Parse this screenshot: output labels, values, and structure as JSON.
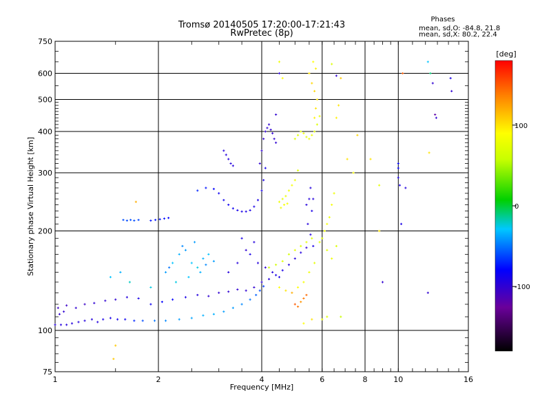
{
  "chart_data": {
    "type": "scatter",
    "title": "Tromsø 20140505 17:20:00-17:21:43",
    "subtitle": "RwPretec (8p)",
    "xlabel": "Frequency [MHz]",
    "ylabel": "Stationary phase Virtual Height [km]",
    "x_scale": "log",
    "y_scale": "log",
    "xlim": [
      1,
      16
    ],
    "ylim": [
      75,
      750
    ],
    "grid": true,
    "x_ticks_major": [
      {
        "value": 1,
        "label": "1"
      },
      {
        "value": 2,
        "label": "2"
      },
      {
        "value": 4,
        "label": "4"
      },
      {
        "value": 6,
        "label": "6"
      },
      {
        "value": 8,
        "label": "8"
      },
      {
        "value": 10,
        "label": "10"
      },
      {
        "value": 16,
        "label": "16"
      }
    ],
    "y_ticks_major": [
      {
        "value": 75,
        "label": "75"
      },
      {
        "value": 100,
        "label": "100"
      },
      {
        "value": 200,
        "label": "200"
      },
      {
        "value": 300,
        "label": "300"
      },
      {
        "value": 400,
        "label": "400"
      },
      {
        "value": 500,
        "label": "500"
      },
      {
        "value": 600,
        "label": "600"
      },
      {
        "value": 750,
        "label": "750"
      }
    ],
    "phase_stats": {
      "heading": "Phases",
      "line_o": "mean, sd,O: -84.8, 21.8",
      "line_x": "mean, sd,X:  80.2, 22.4"
    },
    "colorbar": {
      "label": "[deg]",
      "tick_labels": [
        "100",
        "0",
        "-100"
      ],
      "tick_values": [
        100,
        0,
        -100
      ],
      "range": [
        -180,
        180
      ]
    },
    "series": [
      {
        "comment_free": true,
        "points": [
          [
            1.0,
            104,
            -95
          ],
          [
            1.04,
            104,
            -95
          ],
          [
            1.08,
            104,
            -95
          ],
          [
            1.12,
            105,
            -95
          ],
          [
            1.17,
            106,
            -95
          ],
          [
            1.22,
            107,
            -95
          ],
          [
            1.28,
            108,
            -95
          ],
          [
            1.33,
            106,
            -95
          ],
          [
            1.38,
            108,
            -90
          ],
          [
            1.45,
            109,
            -90
          ],
          [
            1.52,
            108,
            -88
          ],
          [
            1.6,
            108,
            -85
          ],
          [
            1.7,
            107,
            -70
          ],
          [
            1.8,
            107,
            -60
          ],
          [
            1.95,
            107,
            -50
          ],
          [
            2.1,
            107,
            -45
          ],
          [
            2.3,
            108,
            -40
          ],
          [
            2.5,
            109,
            -38
          ],
          [
            2.7,
            111,
            -35
          ],
          [
            2.9,
            112,
            -35
          ],
          [
            3.1,
            114,
            -40
          ],
          [
            3.3,
            117,
            -40
          ],
          [
            3.5,
            120,
            -45
          ],
          [
            3.7,
            124,
            -50
          ],
          [
            3.85,
            128,
            -55
          ],
          [
            3.95,
            132,
            -60
          ],
          [
            4.05,
            136,
            -65
          ],
          [
            1.02,
            117,
            -105
          ],
          [
            1.08,
            119,
            -105
          ],
          [
            1.15,
            117,
            -100
          ],
          [
            1.22,
            120,
            -105
          ],
          [
            1.3,
            121,
            -100
          ],
          [
            1.4,
            123,
            -100
          ],
          [
            1.5,
            124,
            -100
          ],
          [
            1.62,
            126,
            -95
          ],
          [
            1.75,
            125,
            -90
          ],
          [
            1.9,
            120,
            -85
          ],
          [
            2.05,
            122,
            -80
          ],
          [
            2.2,
            124,
            -80
          ],
          [
            2.4,
            126,
            -90
          ],
          [
            2.6,
            128,
            -95
          ],
          [
            2.8,
            127,
            -100
          ],
          [
            3.0,
            130,
            -100
          ],
          [
            3.2,
            131,
            -100
          ],
          [
            3.4,
            133,
            -100
          ],
          [
            3.6,
            132,
            -100
          ],
          [
            3.8,
            135,
            -100
          ],
          [
            4.0,
            140,
            -100
          ],
          [
            4.2,
            143,
            -95
          ],
          [
            4.4,
            147,
            -90
          ],
          [
            4.6,
            152,
            -90
          ],
          [
            4.8,
            158,
            -95
          ],
          [
            5.0,
            165,
            -95
          ],
          [
            5.2,
            172,
            -95
          ],
          [
            5.4,
            178,
            -100
          ],
          [
            2.1,
            150,
            -40
          ],
          [
            2.2,
            160,
            -30
          ],
          [
            2.3,
            170,
            -35
          ],
          [
            2.4,
            175,
            -40
          ],
          [
            2.5,
            160,
            -30
          ],
          [
            2.6,
            155,
            -25
          ],
          [
            2.7,
            165,
            -35
          ],
          [
            2.8,
            170,
            -30
          ],
          [
            2.25,
            140,
            -25
          ],
          [
            2.45,
            145,
            -30
          ],
          [
            2.65,
            150,
            -35
          ],
          [
            2.35,
            180,
            -45
          ],
          [
            2.55,
            185,
            -40
          ],
          [
            2.15,
            155,
            -50
          ],
          [
            2.75,
            158,
            -45
          ],
          [
            2.9,
            162,
            -40
          ],
          [
            1.45,
            145,
            -30
          ],
          [
            1.55,
            150,
            -35
          ],
          [
            1.65,
            140,
            -20
          ],
          [
            1.9,
            135,
            -25
          ],
          [
            3.2,
            150,
            -95
          ],
          [
            3.4,
            160,
            -95
          ],
          [
            3.6,
            175,
            -100
          ],
          [
            3.8,
            185,
            -95
          ],
          [
            3.5,
            190,
            -90
          ],
          [
            3.7,
            170,
            -90
          ],
          [
            3.9,
            160,
            -95
          ],
          [
            4.1,
            155,
            -100
          ],
          [
            4.3,
            150,
            -95
          ],
          [
            4.5,
            145,
            -90
          ],
          [
            4.2,
            155,
            60
          ],
          [
            4.4,
            158,
            65
          ],
          [
            4.6,
            162,
            70
          ],
          [
            4.8,
            170,
            65
          ],
          [
            5.0,
            175,
            75
          ],
          [
            5.2,
            180,
            70
          ],
          [
            5.4,
            185,
            75
          ],
          [
            5.6,
            190,
            70
          ],
          [
            4.5,
            135,
            90
          ],
          [
            4.7,
            132,
            100
          ],
          [
            4.9,
            130,
            120
          ],
          [
            5.1,
            135,
            90
          ],
          [
            5.3,
            140,
            85
          ],
          [
            5.5,
            150,
            80
          ],
          [
            5.7,
            160,
            75
          ],
          [
            1.58,
            216,
            -60
          ],
          [
            1.62,
            215,
            -60
          ],
          [
            1.66,
            216,
            -60
          ],
          [
            1.7,
            215,
            -60
          ],
          [
            1.75,
            216,
            -62
          ],
          [
            1.9,
            215,
            -75
          ],
          [
            1.96,
            216,
            -75
          ],
          [
            2.02,
            217,
            -75
          ],
          [
            2.08,
            218,
            -75
          ],
          [
            2.14,
            219,
            -80
          ],
          [
            2.6,
            265,
            -70
          ],
          [
            2.75,
            270,
            -75
          ],
          [
            2.9,
            268,
            -80
          ],
          [
            3.0,
            260,
            -85
          ],
          [
            3.1,
            248,
            -85
          ],
          [
            3.2,
            240,
            -85
          ],
          [
            3.3,
            234,
            -85
          ],
          [
            3.4,
            231,
            -88
          ],
          [
            3.5,
            229,
            -90
          ],
          [
            3.6,
            229,
            -90
          ],
          [
            3.7,
            231,
            -90
          ],
          [
            3.8,
            237,
            -90
          ],
          [
            3.9,
            248,
            -90
          ],
          [
            4.0,
            265,
            -90
          ],
          [
            4.05,
            285,
            -90
          ],
          [
            4.1,
            310,
            -88
          ],
          [
            3.1,
            350,
            -95
          ],
          [
            3.15,
            340,
            -95
          ],
          [
            3.2,
            330,
            -95
          ],
          [
            3.25,
            320,
            -95
          ],
          [
            3.3,
            315,
            -95
          ],
          [
            3.95,
            320,
            -100
          ],
          [
            4.0,
            350,
            -100
          ],
          [
            4.05,
            380,
            -100
          ],
          [
            4.1,
            400,
            -100
          ],
          [
            4.15,
            410,
            -100
          ],
          [
            4.2,
            420,
            -100
          ],
          [
            4.25,
            405,
            -100
          ],
          [
            4.3,
            395,
            -100
          ],
          [
            4.35,
            380,
            -100
          ],
          [
            4.4,
            370,
            -100
          ],
          [
            4.5,
            245,
            80
          ],
          [
            4.6,
            250,
            75
          ],
          [
            4.7,
            255,
            80
          ],
          [
            4.8,
            265,
            80
          ],
          [
            4.9,
            275,
            85
          ],
          [
            5.0,
            285,
            80
          ],
          [
            5.1,
            305,
            70
          ],
          [
            4.55,
            235,
            80
          ],
          [
            4.65,
            240,
            85
          ],
          [
            4.75,
            242,
            85
          ],
          [
            5.0,
            380,
            70
          ],
          [
            5.1,
            390,
            70
          ],
          [
            5.2,
            400,
            75
          ],
          [
            5.3,
            395,
            80
          ],
          [
            5.4,
            385,
            75
          ],
          [
            5.5,
            380,
            75
          ],
          [
            5.6,
            390,
            80
          ],
          [
            5.7,
            400,
            70
          ],
          [
            5.8,
            420,
            70
          ],
          [
            5.9,
            445,
            75
          ],
          [
            5.4,
            240,
            -95
          ],
          [
            5.5,
            250,
            -95
          ],
          [
            5.55,
            270,
            -95
          ],
          [
            5.6,
            230,
            -90
          ],
          [
            5.65,
            250,
            -95
          ],
          [
            5.45,
            210,
            -95
          ],
          [
            5.55,
            195,
            -95
          ],
          [
            5.65,
            180,
            -90
          ],
          [
            5.7,
            440,
            95
          ],
          [
            5.75,
            470,
            100
          ],
          [
            5.8,
            500,
            100
          ],
          [
            5.7,
            530,
            105
          ],
          [
            5.6,
            560,
            105
          ],
          [
            5.5,
            600,
            100
          ],
          [
            5.75,
            620,
            95
          ],
          [
            5.65,
            650,
            90
          ],
          [
            5.9,
            185,
            70
          ],
          [
            6.0,
            190,
            70
          ],
          [
            6.1,
            200,
            80
          ],
          [
            6.2,
            210,
            85
          ],
          [
            6.3,
            220,
            80
          ],
          [
            6.4,
            240,
            85
          ],
          [
            6.5,
            260,
            80
          ],
          [
            6.2,
            175,
            75
          ],
          [
            6.4,
            165,
            80
          ],
          [
            6.6,
            180,
            70
          ],
          [
            5.0,
            120,
            150
          ],
          [
            5.1,
            118,
            140
          ],
          [
            5.2,
            122,
            130
          ],
          [
            5.3,
            125,
            140
          ],
          [
            5.4,
            128,
            145
          ],
          [
            4.5,
            650,
            80
          ],
          [
            4.5,
            600,
            -100
          ],
          [
            4.6,
            580,
            90
          ],
          [
            4.4,
            450,
            -100
          ],
          [
            6.4,
            640,
            70
          ],
          [
            6.6,
            590,
            -100
          ],
          [
            6.8,
            580,
            110
          ],
          [
            6.7,
            480,
            100
          ],
          [
            6.6,
            440,
            95
          ],
          [
            7.1,
            330,
            100
          ],
          [
            7.4,
            300,
            85
          ],
          [
            7.6,
            390,
            105
          ],
          [
            8.3,
            330,
            100
          ],
          [
            8.8,
            275,
            75
          ],
          [
            8.8,
            200,
            100
          ],
          [
            9.0,
            140,
            -100
          ],
          [
            10.0,
            320,
            -80
          ],
          [
            10.0,
            310,
            -80
          ],
          [
            10.0,
            290,
            -90
          ],
          [
            10.1,
            275,
            -90
          ],
          [
            10.5,
            270,
            -95
          ],
          [
            10.2,
            210,
            -90
          ],
          [
            10.3,
            600,
            150
          ],
          [
            12.2,
            650,
            -30
          ],
          [
            12.4,
            600,
            -10
          ],
          [
            12.6,
            560,
            -100
          ],
          [
            12.8,
            450,
            -120
          ],
          [
            12.9,
            440,
            -100
          ],
          [
            14.2,
            580,
            -90
          ],
          [
            14.3,
            530,
            -100
          ],
          [
            12.3,
            345,
            100
          ],
          [
            12.2,
            130,
            -100
          ],
          [
            1.5,
            90,
            110
          ],
          [
            1.48,
            82,
            110
          ],
          [
            1.72,
            245,
            120
          ],
          [
            1.03,
            112,
            -100
          ],
          [
            1.06,
            114,
            -100
          ],
          [
            6.2,
            110,
            70
          ],
          [
            6.0,
            108,
            80
          ],
          [
            6.8,
            110,
            60
          ],
          [
            5.3,
            105,
            90
          ],
          [
            5.6,
            108,
            100
          ]
        ]
      }
    ]
  }
}
